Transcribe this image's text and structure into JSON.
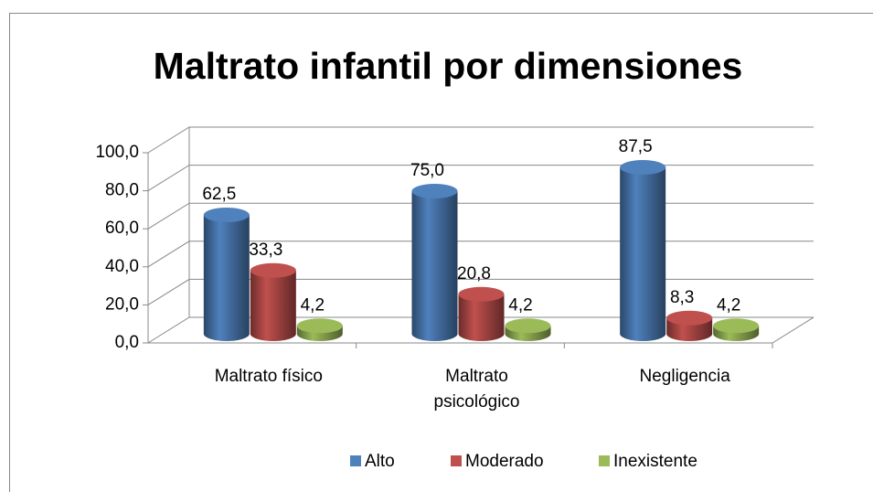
{
  "chart_data": {
    "type": "bar3d",
    "title": "Maltrato infantil por dimensiones",
    "categories": [
      "Maltrato físico",
      "Maltrato psicológico",
      "Negligencia"
    ],
    "series": [
      {
        "name": "Alto",
        "color": "#4f81bd",
        "values": [
          62.5,
          75.0,
          87.5
        ],
        "value_labels": [
          "62,5",
          "75,0",
          "87,5"
        ]
      },
      {
        "name": "Moderado",
        "color": "#c0504d",
        "values": [
          33.3,
          20.8,
          8.3
        ],
        "value_labels": [
          "33,3",
          "20,8",
          "8,3"
        ]
      },
      {
        "name": "Inexistente",
        "color": "#9bbb59",
        "values": [
          4.2,
          4.2,
          4.2
        ],
        "value_labels": [
          "4,2",
          "4,2",
          "4,2"
        ]
      }
    ],
    "ylim": [
      0,
      100
    ],
    "yticks": [
      {
        "value": 0,
        "label": "0,0"
      },
      {
        "value": 20,
        "label": "20,0"
      },
      {
        "value": 40,
        "label": "40,0"
      },
      {
        "value": 60,
        "label": "60,0"
      },
      {
        "value": 80,
        "label": "80,0"
      },
      {
        "value": 100,
        "label": "100,0"
      }
    ],
    "grid": true,
    "legend": "bottom"
  }
}
